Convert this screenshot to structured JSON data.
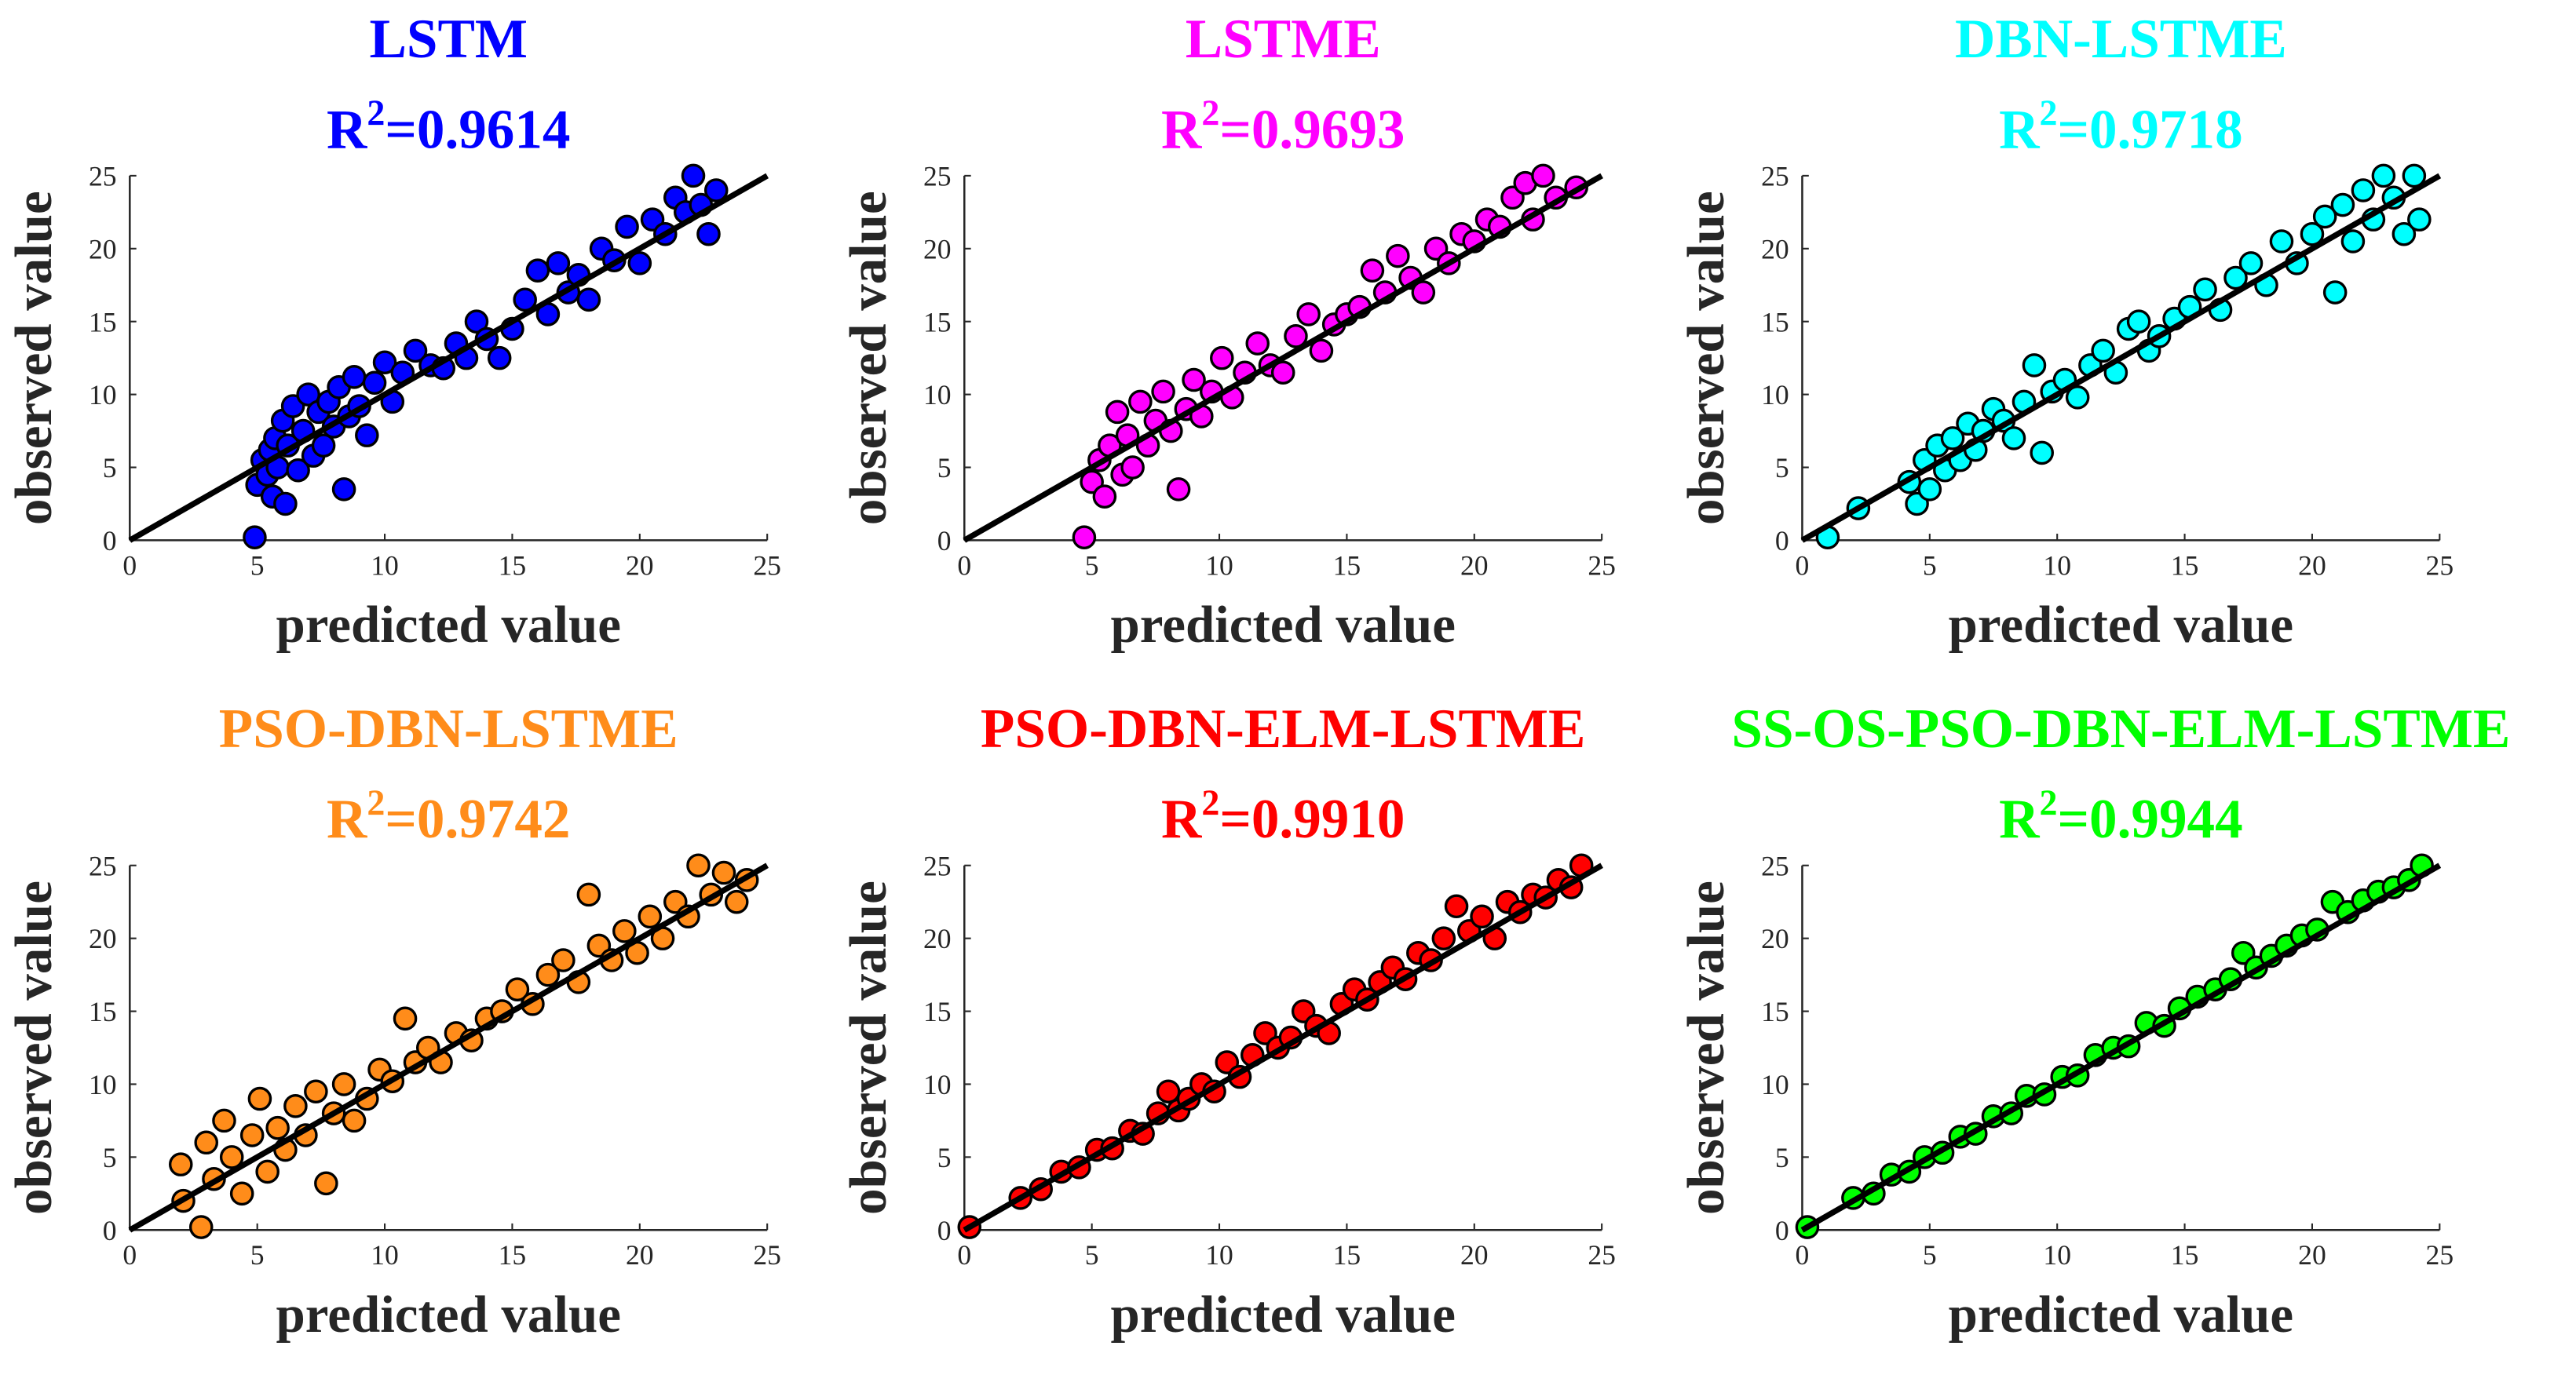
{
  "chart_data": [
    {
      "type": "scatter",
      "title": "LSTM",
      "r2_label": "R",
      "r2_exponent": "2",
      "r2_value": "=0.9614",
      "color": "#0000ff",
      "xlabel": "predicted value",
      "ylabel": "observed value",
      "xlim": [
        0,
        25
      ],
      "ylim": [
        0,
        25
      ],
      "xticks": [
        "0",
        "5",
        "10",
        "15",
        "20",
        "25"
      ],
      "yticks": [
        "0",
        "5",
        "10",
        "15",
        "20",
        "25"
      ],
      "fit_line": [
        [
          0,
          0
        ],
        [
          25,
          25
        ]
      ],
      "points": [
        [
          4.9,
          0.2
        ],
        [
          5.0,
          3.8
        ],
        [
          5.2,
          5.5
        ],
        [
          5.4,
          4.5
        ],
        [
          5.5,
          6.2
        ],
        [
          5.6,
          3.0
        ],
        [
          5.7,
          7.0
        ],
        [
          5.8,
          5.0
        ],
        [
          6.0,
          8.2
        ],
        [
          6.1,
          2.5
        ],
        [
          6.2,
          6.5
        ],
        [
          6.4,
          9.2
        ],
        [
          6.6,
          4.8
        ],
        [
          6.8,
          7.5
        ],
        [
          7.0,
          10.0
        ],
        [
          7.2,
          5.8
        ],
        [
          7.4,
          8.8
        ],
        [
          7.6,
          6.5
        ],
        [
          7.8,
          9.5
        ],
        [
          8.0,
          7.8
        ],
        [
          8.2,
          10.5
        ],
        [
          8.4,
          3.5
        ],
        [
          8.6,
          8.5
        ],
        [
          8.8,
          11.2
        ],
        [
          9.0,
          9.2
        ],
        [
          9.3,
          7.2
        ],
        [
          9.6,
          10.8
        ],
        [
          10.0,
          12.2
        ],
        [
          10.3,
          9.5
        ],
        [
          10.7,
          11.5
        ],
        [
          11.2,
          13.0
        ],
        [
          11.8,
          12.0
        ],
        [
          12.3,
          11.8
        ],
        [
          12.8,
          13.5
        ],
        [
          13.2,
          12.5
        ],
        [
          13.6,
          15.0
        ],
        [
          14.0,
          13.8
        ],
        [
          14.5,
          12.5
        ],
        [
          15.0,
          14.5
        ],
        [
          15.5,
          16.5
        ],
        [
          16.0,
          18.5
        ],
        [
          16.4,
          15.5
        ],
        [
          16.8,
          19.0
        ],
        [
          17.2,
          17.0
        ],
        [
          17.6,
          18.2
        ],
        [
          18.0,
          16.5
        ],
        [
          18.5,
          20.0
        ],
        [
          19.0,
          19.2
        ],
        [
          19.5,
          21.5
        ],
        [
          20.0,
          19.0
        ],
        [
          20.5,
          22.0
        ],
        [
          21.0,
          21.0
        ],
        [
          21.4,
          23.5
        ],
        [
          21.8,
          22.5
        ],
        [
          22.1,
          25.0
        ],
        [
          22.4,
          23.0
        ],
        [
          22.7,
          21.0
        ],
        [
          23.0,
          24.0
        ]
      ]
    },
    {
      "type": "scatter",
      "title": "LSTME",
      "r2_label": "R",
      "r2_exponent": "2",
      "r2_value": "=0.9693",
      "color": "#ff00ff",
      "xlabel": "predicted value",
      "ylabel": "observed value",
      "xlim": [
        0,
        25
      ],
      "ylim": [
        0,
        25
      ],
      "xticks": [
        "0",
        "5",
        "10",
        "15",
        "20",
        "25"
      ],
      "yticks": [
        "0",
        "5",
        "10",
        "15",
        "20",
        "25"
      ],
      "fit_line": [
        [
          0,
          0
        ],
        [
          25,
          25
        ]
      ],
      "points": [
        [
          4.7,
          0.2
        ],
        [
          5.0,
          4.0
        ],
        [
          5.3,
          5.5
        ],
        [
          5.5,
          3.0
        ],
        [
          5.7,
          6.5
        ],
        [
          6.0,
          8.8
        ],
        [
          6.2,
          4.5
        ],
        [
          6.4,
          7.2
        ],
        [
          6.6,
          5.0
        ],
        [
          6.9,
          9.5
        ],
        [
          7.2,
          6.5
        ],
        [
          7.5,
          8.2
        ],
        [
          7.8,
          10.2
        ],
        [
          8.1,
          7.5
        ],
        [
          8.4,
          3.5
        ],
        [
          8.7,
          9.0
        ],
        [
          9.0,
          11.0
        ],
        [
          9.3,
          8.5
        ],
        [
          9.7,
          10.2
        ],
        [
          10.1,
          12.5
        ],
        [
          10.5,
          9.8
        ],
        [
          11.0,
          11.5
        ],
        [
          11.5,
          13.5
        ],
        [
          12.0,
          12.0
        ],
        [
          12.5,
          11.5
        ],
        [
          13.0,
          14.0
        ],
        [
          13.5,
          15.5
        ],
        [
          14.0,
          13.0
        ],
        [
          14.5,
          14.8
        ],
        [
          15.0,
          15.5
        ],
        [
          15.5,
          16.0
        ],
        [
          16.0,
          18.5
        ],
        [
          16.5,
          17.0
        ],
        [
          17.0,
          19.5
        ],
        [
          17.5,
          18.0
        ],
        [
          18.0,
          17.0
        ],
        [
          18.5,
          20.0
        ],
        [
          19.0,
          19.0
        ],
        [
          19.5,
          21.0
        ],
        [
          20.0,
          20.5
        ],
        [
          20.5,
          22.0
        ],
        [
          21.0,
          21.5
        ],
        [
          21.5,
          23.5
        ],
        [
          22.0,
          24.5
        ],
        [
          22.3,
          22.0
        ],
        [
          22.7,
          25.0
        ],
        [
          23.2,
          23.5
        ],
        [
          24.0,
          24.2
        ]
      ]
    },
    {
      "type": "scatter",
      "title": "DBN-LSTME",
      "r2_label": "R",
      "r2_exponent": "2",
      "r2_value": "=0.9718",
      "color": "#00ffff",
      "xlabel": "predicted value",
      "ylabel": "observed value",
      "xlim": [
        0,
        25
      ],
      "ylim": [
        0,
        25
      ],
      "xticks": [
        "0",
        "5",
        "10",
        "15",
        "20",
        "25"
      ],
      "yticks": [
        "0",
        "5",
        "10",
        "15",
        "20",
        "25"
      ],
      "fit_line": [
        [
          0,
          0
        ],
        [
          25,
          25
        ]
      ],
      "points": [
        [
          1.0,
          0.2
        ],
        [
          2.2,
          2.2
        ],
        [
          4.2,
          4.0
        ],
        [
          4.5,
          2.5
        ],
        [
          4.8,
          5.5
        ],
        [
          5.0,
          3.5
        ],
        [
          5.3,
          6.5
        ],
        [
          5.6,
          4.8
        ],
        [
          5.9,
          7.0
        ],
        [
          6.2,
          5.5
        ],
        [
          6.5,
          8.0
        ],
        [
          6.8,
          6.2
        ],
        [
          7.1,
          7.5
        ],
        [
          7.5,
          9.0
        ],
        [
          7.9,
          8.2
        ],
        [
          8.3,
          7.0
        ],
        [
          8.7,
          9.5
        ],
        [
          9.1,
          12.0
        ],
        [
          9.4,
          6.0
        ],
        [
          9.8,
          10.2
        ],
        [
          10.3,
          11.0
        ],
        [
          10.8,
          9.8
        ],
        [
          11.3,
          12.0
        ],
        [
          11.8,
          13.0
        ],
        [
          12.3,
          11.5
        ],
        [
          12.8,
          14.5
        ],
        [
          13.2,
          15.0
        ],
        [
          13.6,
          13.0
        ],
        [
          14.0,
          14.0
        ],
        [
          14.6,
          15.2
        ],
        [
          15.2,
          16.0
        ],
        [
          15.8,
          17.2
        ],
        [
          16.4,
          15.8
        ],
        [
          17.0,
          18.0
        ],
        [
          17.6,
          19.0
        ],
        [
          18.2,
          17.5
        ],
        [
          18.8,
          20.5
        ],
        [
          19.4,
          19.0
        ],
        [
          20.0,
          21.0
        ],
        [
          20.5,
          22.2
        ],
        [
          20.9,
          17.0
        ],
        [
          21.2,
          23.0
        ],
        [
          21.6,
          20.5
        ],
        [
          22.0,
          24.0
        ],
        [
          22.4,
          22.0
        ],
        [
          22.8,
          25.0
        ],
        [
          23.2,
          23.5
        ],
        [
          23.6,
          21.0
        ],
        [
          24.0,
          25.0
        ],
        [
          24.2,
          22.0
        ]
      ]
    },
    {
      "type": "scatter",
      "title": "PSO-DBN-LSTME",
      "r2_label": "R",
      "r2_exponent": "2",
      "r2_value": "=0.9742",
      "color": "#ff8c1a",
      "xlabel": "predicted value",
      "ylabel": "observed value",
      "xlim": [
        0,
        25
      ],
      "ylim": [
        0,
        25
      ],
      "xticks": [
        "0",
        "5",
        "10",
        "15",
        "20",
        "25"
      ],
      "yticks": [
        "0",
        "5",
        "10",
        "15",
        "20",
        "25"
      ],
      "fit_line": [
        [
          0,
          0
        ],
        [
          25,
          25
        ]
      ],
      "points": [
        [
          2.0,
          4.5
        ],
        [
          2.1,
          2.0
        ],
        [
          2.8,
          0.2
        ],
        [
          3.0,
          6.0
        ],
        [
          3.3,
          3.5
        ],
        [
          3.7,
          7.5
        ],
        [
          4.0,
          5.0
        ],
        [
          4.4,
          2.5
        ],
        [
          4.8,
          6.5
        ],
        [
          5.1,
          9.0
        ],
        [
          5.4,
          4.0
        ],
        [
          5.8,
          7.0
        ],
        [
          6.1,
          5.5
        ],
        [
          6.5,
          8.5
        ],
        [
          6.9,
          6.5
        ],
        [
          7.3,
          9.5
        ],
        [
          7.7,
          3.2
        ],
        [
          8.0,
          8.0
        ],
        [
          8.4,
          10.0
        ],
        [
          8.8,
          7.5
        ],
        [
          9.3,
          9.0
        ],
        [
          9.8,
          11.0
        ],
        [
          10.3,
          10.2
        ],
        [
          10.8,
          14.5
        ],
        [
          11.2,
          11.5
        ],
        [
          11.7,
          12.5
        ],
        [
          12.2,
          11.5
        ],
        [
          12.8,
          13.5
        ],
        [
          13.4,
          13.0
        ],
        [
          14.0,
          14.5
        ],
        [
          14.6,
          15.0
        ],
        [
          15.2,
          16.5
        ],
        [
          15.8,
          15.5
        ],
        [
          16.4,
          17.5
        ],
        [
          17.0,
          18.5
        ],
        [
          17.6,
          17.0
        ],
        [
          18.0,
          23.0
        ],
        [
          18.4,
          19.5
        ],
        [
          18.9,
          18.5
        ],
        [
          19.4,
          20.5
        ],
        [
          19.9,
          19.0
        ],
        [
          20.4,
          21.5
        ],
        [
          20.9,
          20.0
        ],
        [
          21.4,
          22.5
        ],
        [
          21.9,
          21.5
        ],
        [
          22.3,
          25.0
        ],
        [
          22.8,
          23.0
        ],
        [
          23.3,
          24.5
        ],
        [
          23.8,
          22.5
        ],
        [
          24.2,
          24.0
        ]
      ]
    },
    {
      "type": "scatter",
      "title": "PSO-DBN-ELM-LSTME",
      "r2_label": "R",
      "r2_exponent": "2",
      "r2_value": "=0.9910",
      "color": "#ff0000",
      "xlabel": "predicted value",
      "ylabel": "observed value",
      "xlim": [
        0,
        25
      ],
      "ylim": [
        0,
        25
      ],
      "xticks": [
        "0",
        "5",
        "10",
        "15",
        "20",
        "25"
      ],
      "yticks": [
        "0",
        "5",
        "10",
        "15",
        "20",
        "25"
      ],
      "fit_line": [
        [
          0,
          0
        ],
        [
          25,
          25
        ]
      ],
      "points": [
        [
          0.2,
          0.2
        ],
        [
          2.2,
          2.2
        ],
        [
          3.0,
          2.8
        ],
        [
          3.8,
          4.0
        ],
        [
          4.5,
          4.3
        ],
        [
          5.2,
          5.5
        ],
        [
          5.8,
          5.6
        ],
        [
          6.5,
          6.8
        ],
        [
          7.0,
          6.6
        ],
        [
          7.6,
          8.0
        ],
        [
          8.0,
          9.5
        ],
        [
          8.4,
          8.2
        ],
        [
          8.8,
          9.0
        ],
        [
          9.3,
          10.0
        ],
        [
          9.8,
          9.5
        ],
        [
          10.3,
          11.5
        ],
        [
          10.8,
          10.5
        ],
        [
          11.3,
          12.0
        ],
        [
          11.8,
          13.5
        ],
        [
          12.3,
          12.5
        ],
        [
          12.8,
          13.2
        ],
        [
          13.3,
          15.0
        ],
        [
          13.8,
          14.0
        ],
        [
          14.3,
          13.5
        ],
        [
          14.8,
          15.5
        ],
        [
          15.3,
          16.5
        ],
        [
          15.8,
          15.8
        ],
        [
          16.3,
          17.0
        ],
        [
          16.8,
          18.0
        ],
        [
          17.3,
          17.2
        ],
        [
          17.8,
          19.0
        ],
        [
          18.3,
          18.5
        ],
        [
          18.8,
          20.0
        ],
        [
          19.3,
          22.2
        ],
        [
          19.8,
          20.5
        ],
        [
          20.3,
          21.5
        ],
        [
          20.8,
          20.0
        ],
        [
          21.3,
          22.5
        ],
        [
          21.8,
          21.8
        ],
        [
          22.3,
          23.0
        ],
        [
          22.8,
          22.8
        ],
        [
          23.3,
          24.0
        ],
        [
          23.8,
          23.5
        ],
        [
          24.2,
          25.0
        ]
      ]
    },
    {
      "type": "scatter",
      "title": "SS-OS-PSO-DBN-ELM-LSTME",
      "r2_label": "R",
      "r2_exponent": "2",
      "r2_value": "=0.9944",
      "color": "#00ff00",
      "xlabel": "predicted value",
      "ylabel": "observed value",
      "xlim": [
        0,
        25
      ],
      "ylim": [
        0,
        25
      ],
      "xticks": [
        "0",
        "5",
        "10",
        "15",
        "20",
        "25"
      ],
      "yticks": [
        "0",
        "5",
        "10",
        "15",
        "20",
        "25"
      ],
      "fit_line": [
        [
          0,
          0
        ],
        [
          25,
          25
        ]
      ],
      "points": [
        [
          0.2,
          0.2
        ],
        [
          2.0,
          2.2
        ],
        [
          2.8,
          2.5
        ],
        [
          3.5,
          3.8
        ],
        [
          4.2,
          4.0
        ],
        [
          4.8,
          5.0
        ],
        [
          5.5,
          5.3
        ],
        [
          6.2,
          6.4
        ],
        [
          6.8,
          6.6
        ],
        [
          7.5,
          7.8
        ],
        [
          8.2,
          8.0
        ],
        [
          8.8,
          9.2
        ],
        [
          9.5,
          9.3
        ],
        [
          10.2,
          10.5
        ],
        [
          10.8,
          10.6
        ],
        [
          11.5,
          12.0
        ],
        [
          12.2,
          12.5
        ],
        [
          12.8,
          12.6
        ],
        [
          13.5,
          14.2
        ],
        [
          14.2,
          14.0
        ],
        [
          14.8,
          15.2
        ],
        [
          15.5,
          16.0
        ],
        [
          16.2,
          16.5
        ],
        [
          16.8,
          17.2
        ],
        [
          17.3,
          19.0
        ],
        [
          17.8,
          18.0
        ],
        [
          18.4,
          18.8
        ],
        [
          19.0,
          19.5
        ],
        [
          19.6,
          20.2
        ],
        [
          20.2,
          20.6
        ],
        [
          20.8,
          22.5
        ],
        [
          21.4,
          21.8
        ],
        [
          22.0,
          22.6
        ],
        [
          22.6,
          23.2
        ],
        [
          23.2,
          23.5
        ],
        [
          23.8,
          24.0
        ],
        [
          24.3,
          25.0
        ]
      ]
    }
  ]
}
